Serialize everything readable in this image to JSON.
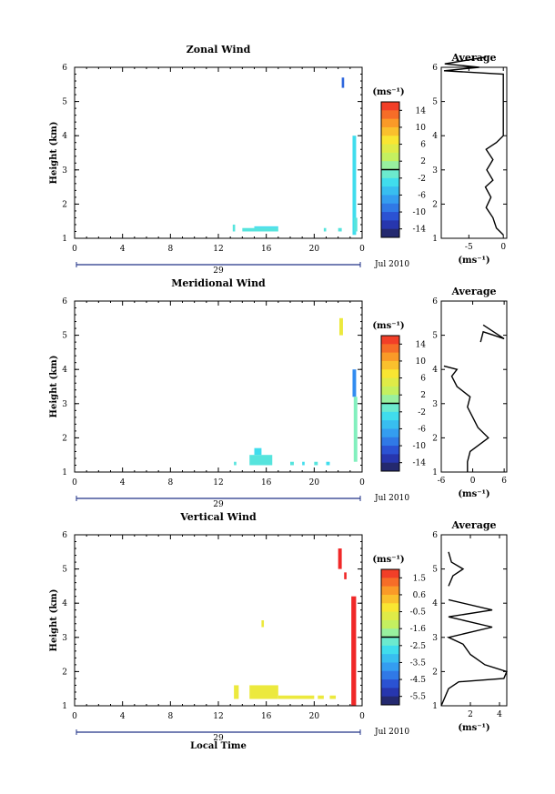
{
  "chart_data": [
    {
      "type": "heatmap",
      "title": "Zonal Wind",
      "ylabel": "Height (km)",
      "xticks": [
        "0",
        "4",
        "8",
        "12",
        "16",
        "20",
        "0"
      ],
      "yticks": [
        "1",
        "2",
        "3",
        "4",
        "5",
        "6"
      ],
      "xlim": [
        0,
        24
      ],
      "ylim": [
        1,
        6
      ],
      "date_day": "29",
      "date_label": "Jul 2010",
      "colorbar": {
        "unit": "(ms⁻¹)",
        "ticks": [
          "14",
          "10",
          "6",
          "2",
          "-2",
          "-6",
          "-10",
          "-14"
        ],
        "range": [
          -16,
          16
        ]
      },
      "cells": [
        {
          "t": [
            22.3,
            22.5
          ],
          "h": [
            5.4,
            5.7
          ],
          "v": -10
        },
        {
          "t": [
            23.2,
            23.5
          ],
          "h": [
            1.1,
            4.0
          ],
          "v": -3
        },
        {
          "t": [
            23.3,
            23.6
          ],
          "h": [
            1.2,
            1.6
          ],
          "v": -2
        },
        {
          "t": [
            13.2,
            13.4
          ],
          "h": [
            1.2,
            1.4
          ],
          "v": -2
        },
        {
          "t": [
            14.0,
            17.0
          ],
          "h": [
            1.2,
            1.3
          ],
          "v": -2
        },
        {
          "t": [
            15.0,
            17.0
          ],
          "h": [
            1.3,
            1.35
          ],
          "v": -3
        },
        {
          "t": [
            20.8,
            21.0
          ],
          "h": [
            1.2,
            1.3
          ],
          "v": -2
        },
        {
          "t": [
            22.0,
            22.3
          ],
          "h": [
            1.2,
            1.3
          ],
          "v": -2
        }
      ],
      "average": {
        "title": "Average",
        "xlabel": "(ms⁻¹)",
        "xticks": [
          "-5",
          "0"
        ],
        "yticks": [
          "1",
          "2",
          "3",
          "4",
          "5",
          "6"
        ],
        "xlim": [
          -9,
          0.5
        ],
        "ylim": [
          1,
          6
        ],
        "profile": [
          [
            0,
            1.1
          ],
          [
            -1,
            1.3
          ],
          [
            -1.5,
            1.6
          ],
          [
            -2.5,
            1.9
          ],
          [
            -1.8,
            2.2
          ],
          [
            -2.6,
            2.5
          ],
          [
            -1.5,
            2.7
          ],
          [
            -2.4,
            3.0
          ],
          [
            -1.5,
            3.3
          ],
          [
            -2.5,
            3.6
          ],
          [
            -1,
            3.8
          ],
          [
            0,
            4.0
          ],
          [
            0,
            5.8
          ],
          [
            -8.6,
            5.9
          ],
          [
            -3.5,
            6.0
          ],
          [
            -8.5,
            6.1
          ],
          [
            -2.5,
            6.3
          ]
        ]
      }
    },
    {
      "type": "heatmap",
      "title": "Meridional Wind",
      "ylabel": "Height (km)",
      "xticks": [
        "0",
        "4",
        "8",
        "12",
        "16",
        "20",
        "0"
      ],
      "yticks": [
        "1",
        "2",
        "3",
        "4",
        "5",
        "6"
      ],
      "xlim": [
        0,
        24
      ],
      "ylim": [
        1,
        6
      ],
      "date_day": "29",
      "date_label": "Jul 2010",
      "colorbar": {
        "unit": "(ms⁻¹)",
        "ticks": [
          "14",
          "10",
          "6",
          "2",
          "-2",
          "-6",
          "-10",
          "-14"
        ],
        "range": [
          -16,
          16
        ]
      },
      "cells": [
        {
          "t": [
            22.1,
            22.4
          ],
          "h": [
            5.0,
            5.5
          ],
          "v": 6
        },
        {
          "t": [
            23.2,
            23.5
          ],
          "h": [
            3.2,
            4.0
          ],
          "v": -8
        },
        {
          "t": [
            23.3,
            23.6
          ],
          "h": [
            1.3,
            3.2
          ],
          "v": 0
        },
        {
          "t": [
            13.3,
            13.5
          ],
          "h": [
            1.2,
            1.3
          ],
          "v": -2
        },
        {
          "t": [
            14.6,
            16.5
          ],
          "h": [
            1.2,
            1.5
          ],
          "v": -2
        },
        {
          "t": [
            15.0,
            15.6
          ],
          "h": [
            1.5,
            1.7
          ],
          "v": -3
        },
        {
          "t": [
            18.0,
            18.3
          ],
          "h": [
            1.2,
            1.3
          ],
          "v": -2
        },
        {
          "t": [
            19.0,
            19.2
          ],
          "h": [
            1.2,
            1.3
          ],
          "v": -3
        },
        {
          "t": [
            20.0,
            20.3
          ],
          "h": [
            1.2,
            1.3
          ],
          "v": -2
        },
        {
          "t": [
            21.0,
            21.3
          ],
          "h": [
            1.2,
            1.3
          ],
          "v": -3
        }
      ],
      "average": {
        "title": "Average",
        "xlabel": "(ms⁻¹)",
        "xticks": [
          "-6",
          "0",
          "6"
        ],
        "yticks": [
          "1",
          "2",
          "3",
          "4",
          "5",
          "6"
        ],
        "xlim": [
          -6,
          6.5
        ],
        "ylim": [
          1,
          6
        ],
        "profile_low": [
          [
            -1,
            1.0
          ],
          [
            -1,
            1.3
          ],
          [
            -0.5,
            1.6
          ],
          [
            3,
            2.0
          ],
          [
            1,
            2.3
          ],
          [
            0,
            2.6
          ],
          [
            -1,
            2.9
          ],
          [
            -0.5,
            3.2
          ],
          [
            -3,
            3.5
          ],
          [
            -4,
            3.8
          ],
          [
            -3,
            4.0
          ],
          [
            -5.5,
            4.1
          ]
        ],
        "profile_high": [
          [
            1.5,
            4.8
          ],
          [
            2,
            5.1
          ],
          [
            4,
            5.0
          ],
          [
            6,
            4.9
          ],
          [
            2,
            5.3
          ]
        ]
      }
    },
    {
      "type": "heatmap",
      "title": "Vertical Wind",
      "ylabel": "Height (km)",
      "xlabel": "Local Time",
      "xticks": [
        "0",
        "4",
        "8",
        "12",
        "16",
        "20",
        "0"
      ],
      "yticks": [
        "1",
        "2",
        "3",
        "4",
        "5",
        "6"
      ],
      "xlim": [
        0,
        24
      ],
      "ylim": [
        1,
        6
      ],
      "date_day": "29",
      "date_label": "Jul 2010",
      "colorbar": {
        "unit": "(ms⁻¹)",
        "ticks": [
          "1.5",
          "0.6",
          "-0.5",
          "-1.6",
          "-2.5",
          "-3.5",
          "-4.5",
          "-5.5"
        ],
        "range": [
          -6,
          2
        ]
      },
      "cells": [
        {
          "t": [
            22.0,
            22.3
          ],
          "h": [
            5.0,
            5.6
          ],
          "v": 2
        },
        {
          "t": [
            22.5,
            22.7
          ],
          "h": [
            4.7,
            4.9
          ],
          "v": 2
        },
        {
          "t": [
            23.1,
            23.5
          ],
          "h": [
            1.0,
            4.2
          ],
          "v": 2
        },
        {
          "t": [
            15.6,
            15.8
          ],
          "h": [
            3.3,
            3.5
          ],
          "v": -0.5
        },
        {
          "t": [
            13.3,
            13.7
          ],
          "h": [
            1.2,
            1.6
          ],
          "v": -0.5
        },
        {
          "t": [
            14.6,
            17.0
          ],
          "h": [
            1.2,
            1.6
          ],
          "v": -0.5
        },
        {
          "t": [
            17.0,
            20.0
          ],
          "h": [
            1.2,
            1.3
          ],
          "v": -0.5
        },
        {
          "t": [
            20.3,
            20.8
          ],
          "h": [
            1.2,
            1.3
          ],
          "v": -0.5
        },
        {
          "t": [
            21.3,
            21.8
          ],
          "h": [
            1.2,
            1.3
          ],
          "v": -0.5
        }
      ],
      "average": {
        "title": "Average",
        "xlabel": "(ms⁻¹)",
        "xticks": [
          "2",
          "4"
        ],
        "yticks": [
          "1",
          "2",
          "3",
          "4",
          "5",
          "6"
        ],
        "xlim": [
          0,
          4.5
        ],
        "ylim": [
          1,
          6
        ],
        "profile_low": [
          [
            0,
            1.0
          ],
          [
            0.5,
            1.5
          ],
          [
            1.2,
            1.7
          ],
          [
            4.3,
            1.8
          ],
          [
            4.5,
            2.0
          ],
          [
            3,
            2.2
          ],
          [
            2,
            2.5
          ],
          [
            1.5,
            2.8
          ],
          [
            0.5,
            3.0
          ],
          [
            3.5,
            3.3
          ],
          [
            0.5,
            3.6
          ],
          [
            3.5,
            3.8
          ],
          [
            0.5,
            4.1
          ]
        ],
        "profile_high": [
          [
            0.5,
            4.5
          ],
          [
            0.8,
            4.8
          ],
          [
            1.5,
            5.0
          ],
          [
            0.7,
            5.2
          ],
          [
            0.5,
            5.5
          ]
        ]
      }
    }
  ]
}
